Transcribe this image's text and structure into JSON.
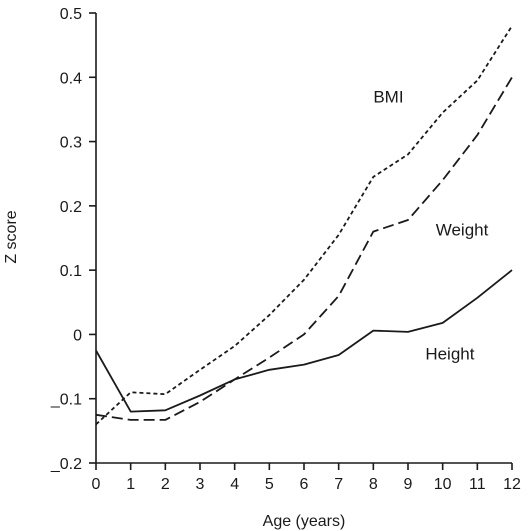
{
  "chart_data": {
    "type": "line",
    "title": "",
    "xlabel": "Age (years)",
    "ylabel": "Z score",
    "xlim": [
      0,
      12
    ],
    "ylim": [
      -0.2,
      0.5
    ],
    "x_ticks": [
      "0",
      "1",
      "2",
      "3",
      "4",
      "5",
      "6",
      "7",
      "8",
      "9",
      "10",
      "11",
      "12"
    ],
    "y_ticks": [
      {
        "value": 0.5,
        "label": "0.5"
      },
      {
        "value": 0.4,
        "label": "0.4"
      },
      {
        "value": 0.3,
        "label": "0.3"
      },
      {
        "value": 0.2,
        "label": "0.2"
      },
      {
        "value": 0.1,
        "label": "0.1"
      },
      {
        "value": 0.0,
        "label": "0"
      },
      {
        "value": -0.1,
        "label": "_0.1"
      },
      {
        "value": -0.2,
        "label": "_0.2"
      }
    ],
    "grid": false,
    "series": [
      {
        "name": "BMI",
        "line_style": "short-dash",
        "label_at": [
          8.0,
          0.37
        ],
        "x": [
          0,
          1,
          2,
          3,
          4,
          5,
          6,
          7,
          8,
          9,
          10,
          11,
          12
        ],
        "values": [
          -0.14,
          -0.09,
          -0.093,
          -0.055,
          -0.018,
          0.03,
          0.085,
          0.155,
          0.245,
          0.28,
          0.345,
          0.395,
          0.48
        ]
      },
      {
        "name": "Weight",
        "line_style": "long-dash",
        "label_at": [
          9.8,
          0.163
        ],
        "x": [
          0,
          1,
          2,
          3,
          4,
          5,
          6,
          7,
          8,
          9,
          10,
          11,
          12
        ],
        "values": [
          -0.125,
          -0.133,
          -0.133,
          -0.105,
          -0.07,
          -0.036,
          0.0,
          0.06,
          0.16,
          0.178,
          0.24,
          0.31,
          0.4
        ]
      },
      {
        "name": "Height",
        "line_style": "solid",
        "label_at": [
          9.5,
          -0.03
        ],
        "x": [
          0,
          1,
          2,
          3,
          4,
          5,
          6,
          7,
          8,
          9,
          10,
          11,
          12
        ],
        "values": [
          -0.025,
          -0.12,
          -0.118,
          -0.095,
          -0.07,
          -0.055,
          -0.047,
          -0.032,
          0.006,
          0.004,
          0.018,
          0.057,
          0.1
        ]
      }
    ]
  }
}
